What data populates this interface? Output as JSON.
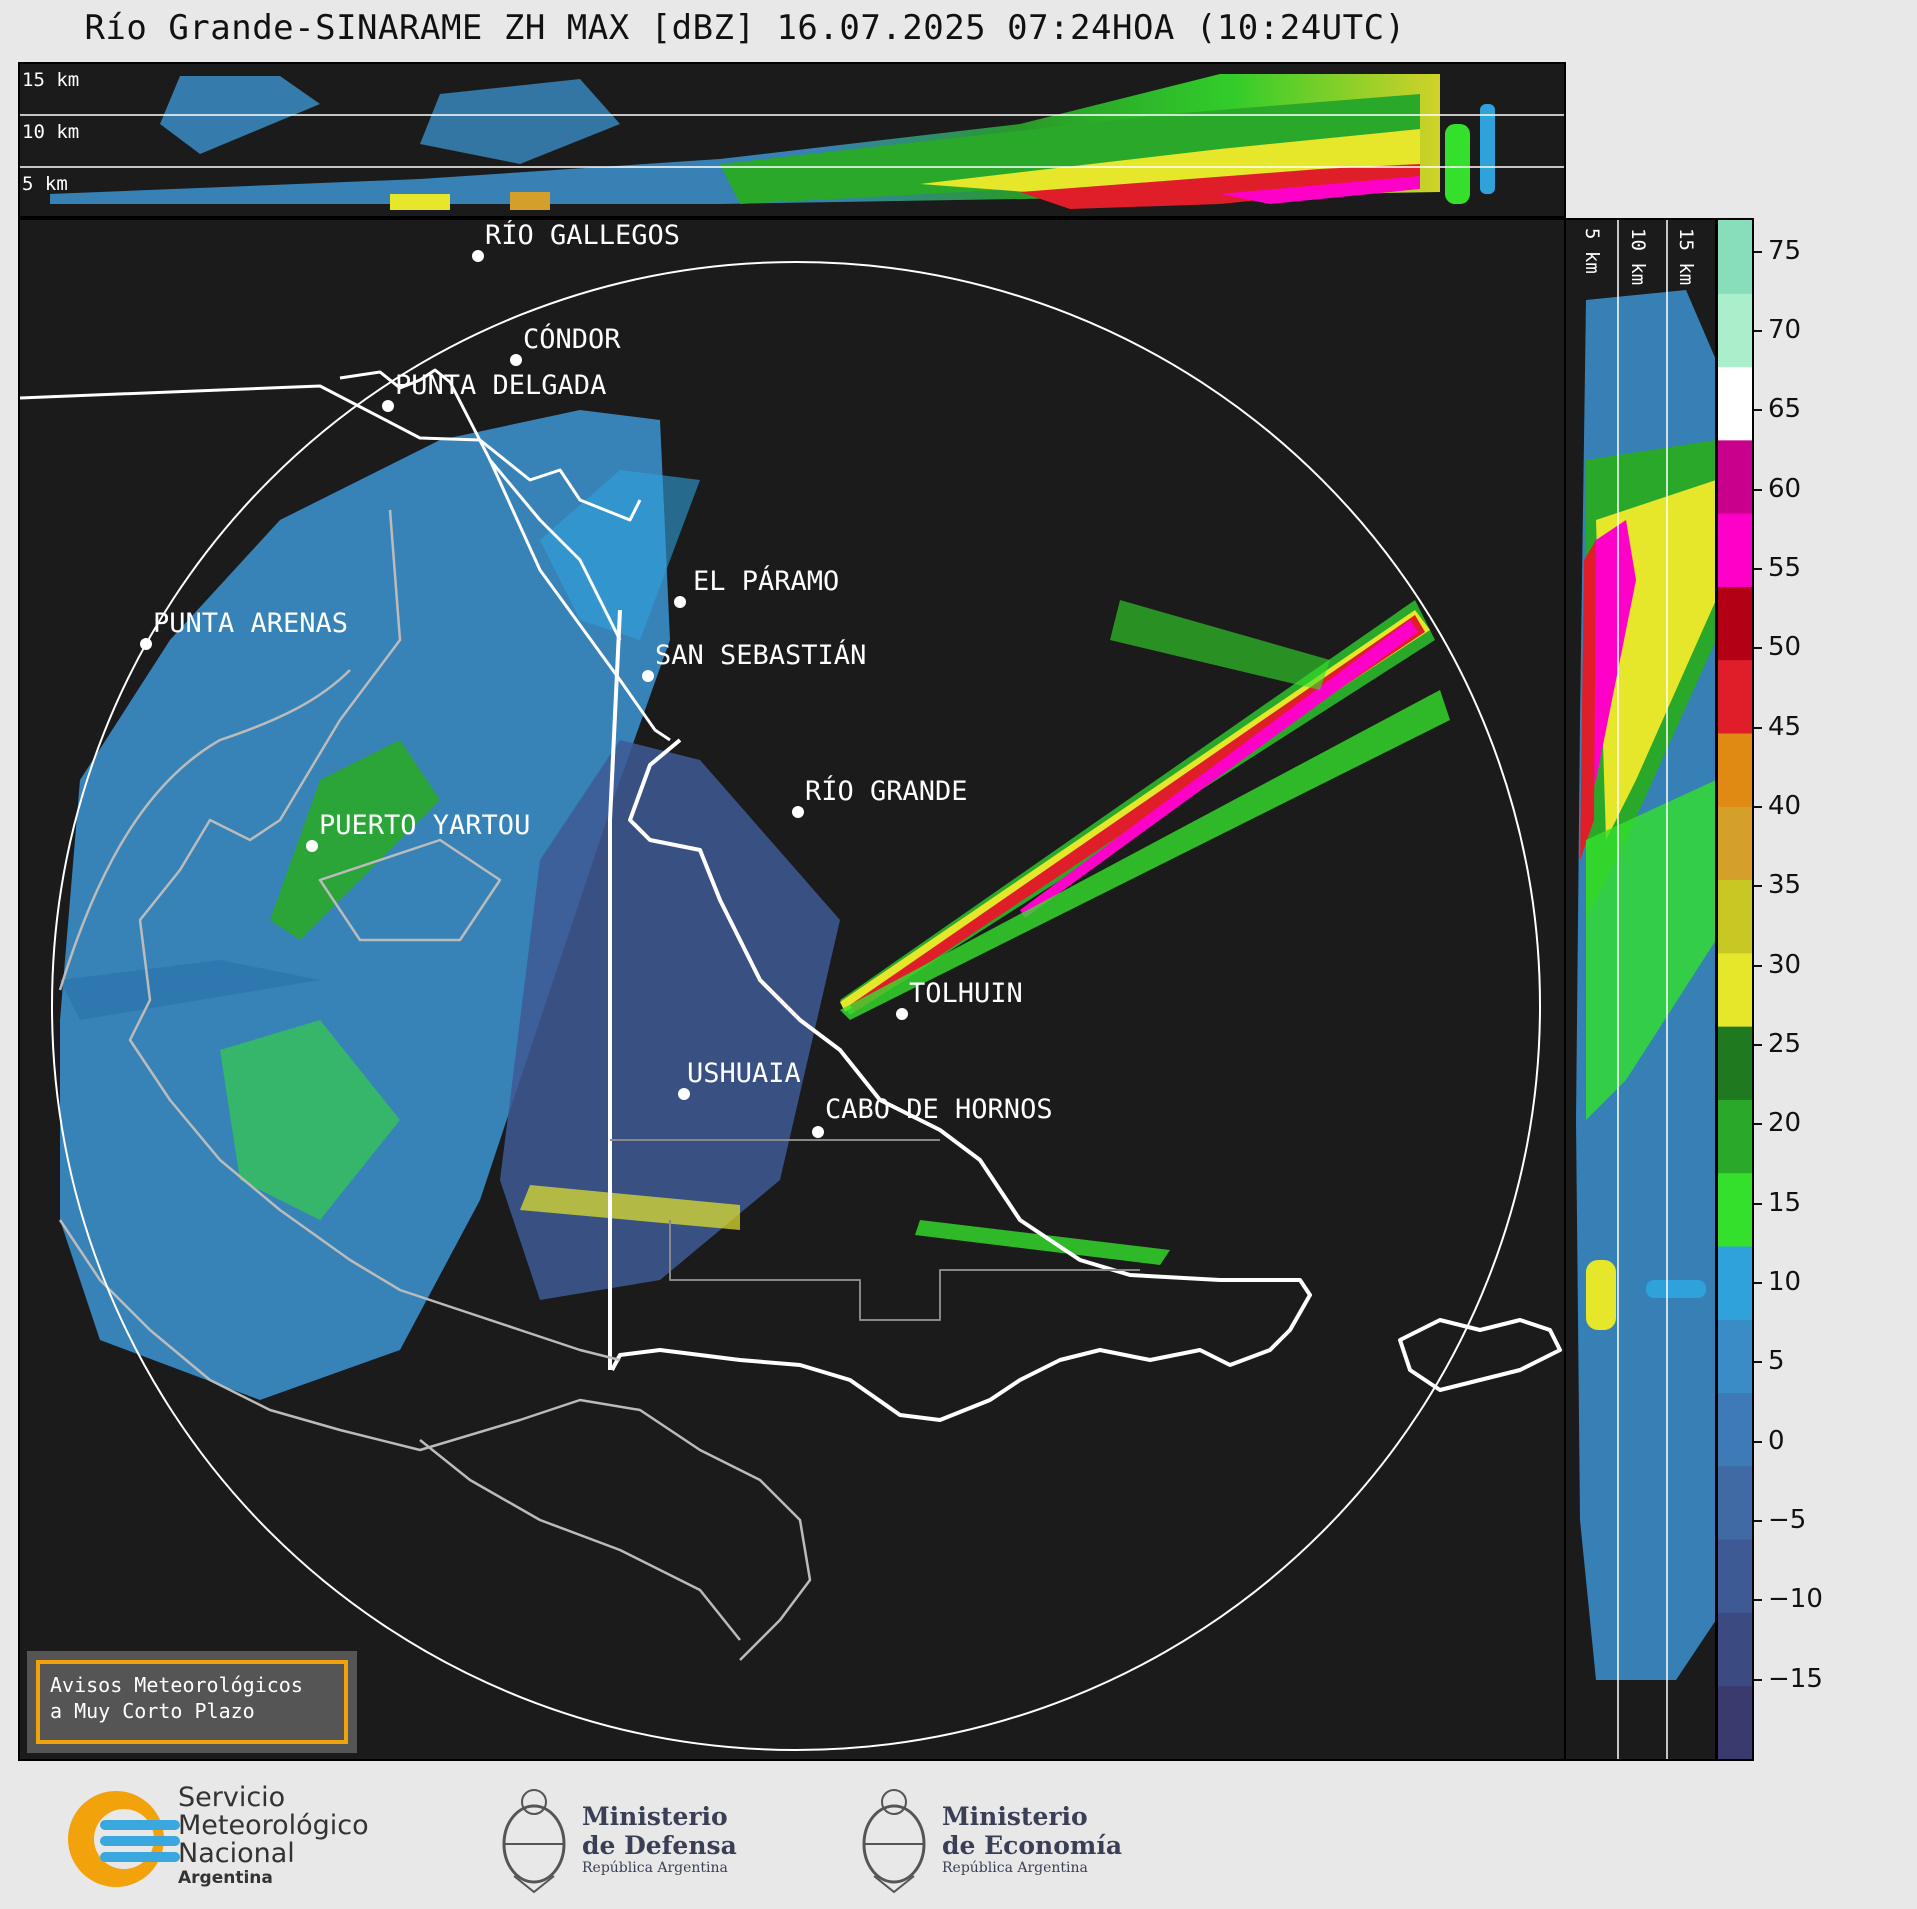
{
  "title": "Río Grande-SINARAME ZH MAX [dBZ] 16.07.2025 07:24HOA (10:24UTC)",
  "top_panel": {
    "height_labels": [
      "15 km",
      "10 km",
      "5 km"
    ]
  },
  "side_panel": {
    "height_labels": [
      "5 km",
      "10 km",
      "15 km"
    ]
  },
  "places": [
    {
      "name": "RÍO GALLEGOS"
    },
    {
      "name": "CÓNDOR"
    },
    {
      "name": "PUNTA DELGADA"
    },
    {
      "name": "PUNTA ARENAS"
    },
    {
      "name": "EL PÁRAMO"
    },
    {
      "name": "SAN SEBASTIÁN"
    },
    {
      "name": "RÍO GRANDE"
    },
    {
      "name": "PUERTO YARTOU"
    },
    {
      "name": "TOLHUIN"
    },
    {
      "name": "USHUAIA"
    },
    {
      "name": "CABO DE HORNOS"
    }
  ],
  "notice": {
    "line1": "Avisos Meteorológicos",
    "line2": "a Muy Corto Plazo"
  },
  "colorbar": {
    "ticks": [
      "75",
      "70",
      "65",
      "60",
      "55",
      "50",
      "45",
      "40",
      "35",
      "30",
      "25",
      "20",
      "15",
      "10",
      "5",
      "0",
      "−5",
      "−10",
      "−15"
    ],
    "range_dbz": [
      -20,
      77
    ],
    "colors": [
      "#3a3a6e",
      "#3c4a82",
      "#3e5a94",
      "#3f6aa4",
      "#3d7ab6",
      "#3a8cc6",
      "#2fa2dc",
      "#34e02c",
      "#2aa82a",
      "#1f7a1f",
      "#e6e62a",
      "#c8c824",
      "#d4a02a",
      "#e08a14",
      "#e01e2a",
      "#b40014",
      "#ff00c8",
      "#c8008c",
      "#ffffff",
      "#aaeecc",
      "#88ddbb"
    ]
  },
  "logos": {
    "smn": {
      "line1": "Servicio",
      "line2": "Meteorológico",
      "line3": "Nacional",
      "line4": "Argentina"
    },
    "defensa": {
      "line1": "Ministerio",
      "line2": "de Defensa",
      "line3": "República Argentina"
    },
    "economia": {
      "line1": "Ministerio",
      "line2": "de Economía",
      "line3": "República Argentina"
    }
  }
}
